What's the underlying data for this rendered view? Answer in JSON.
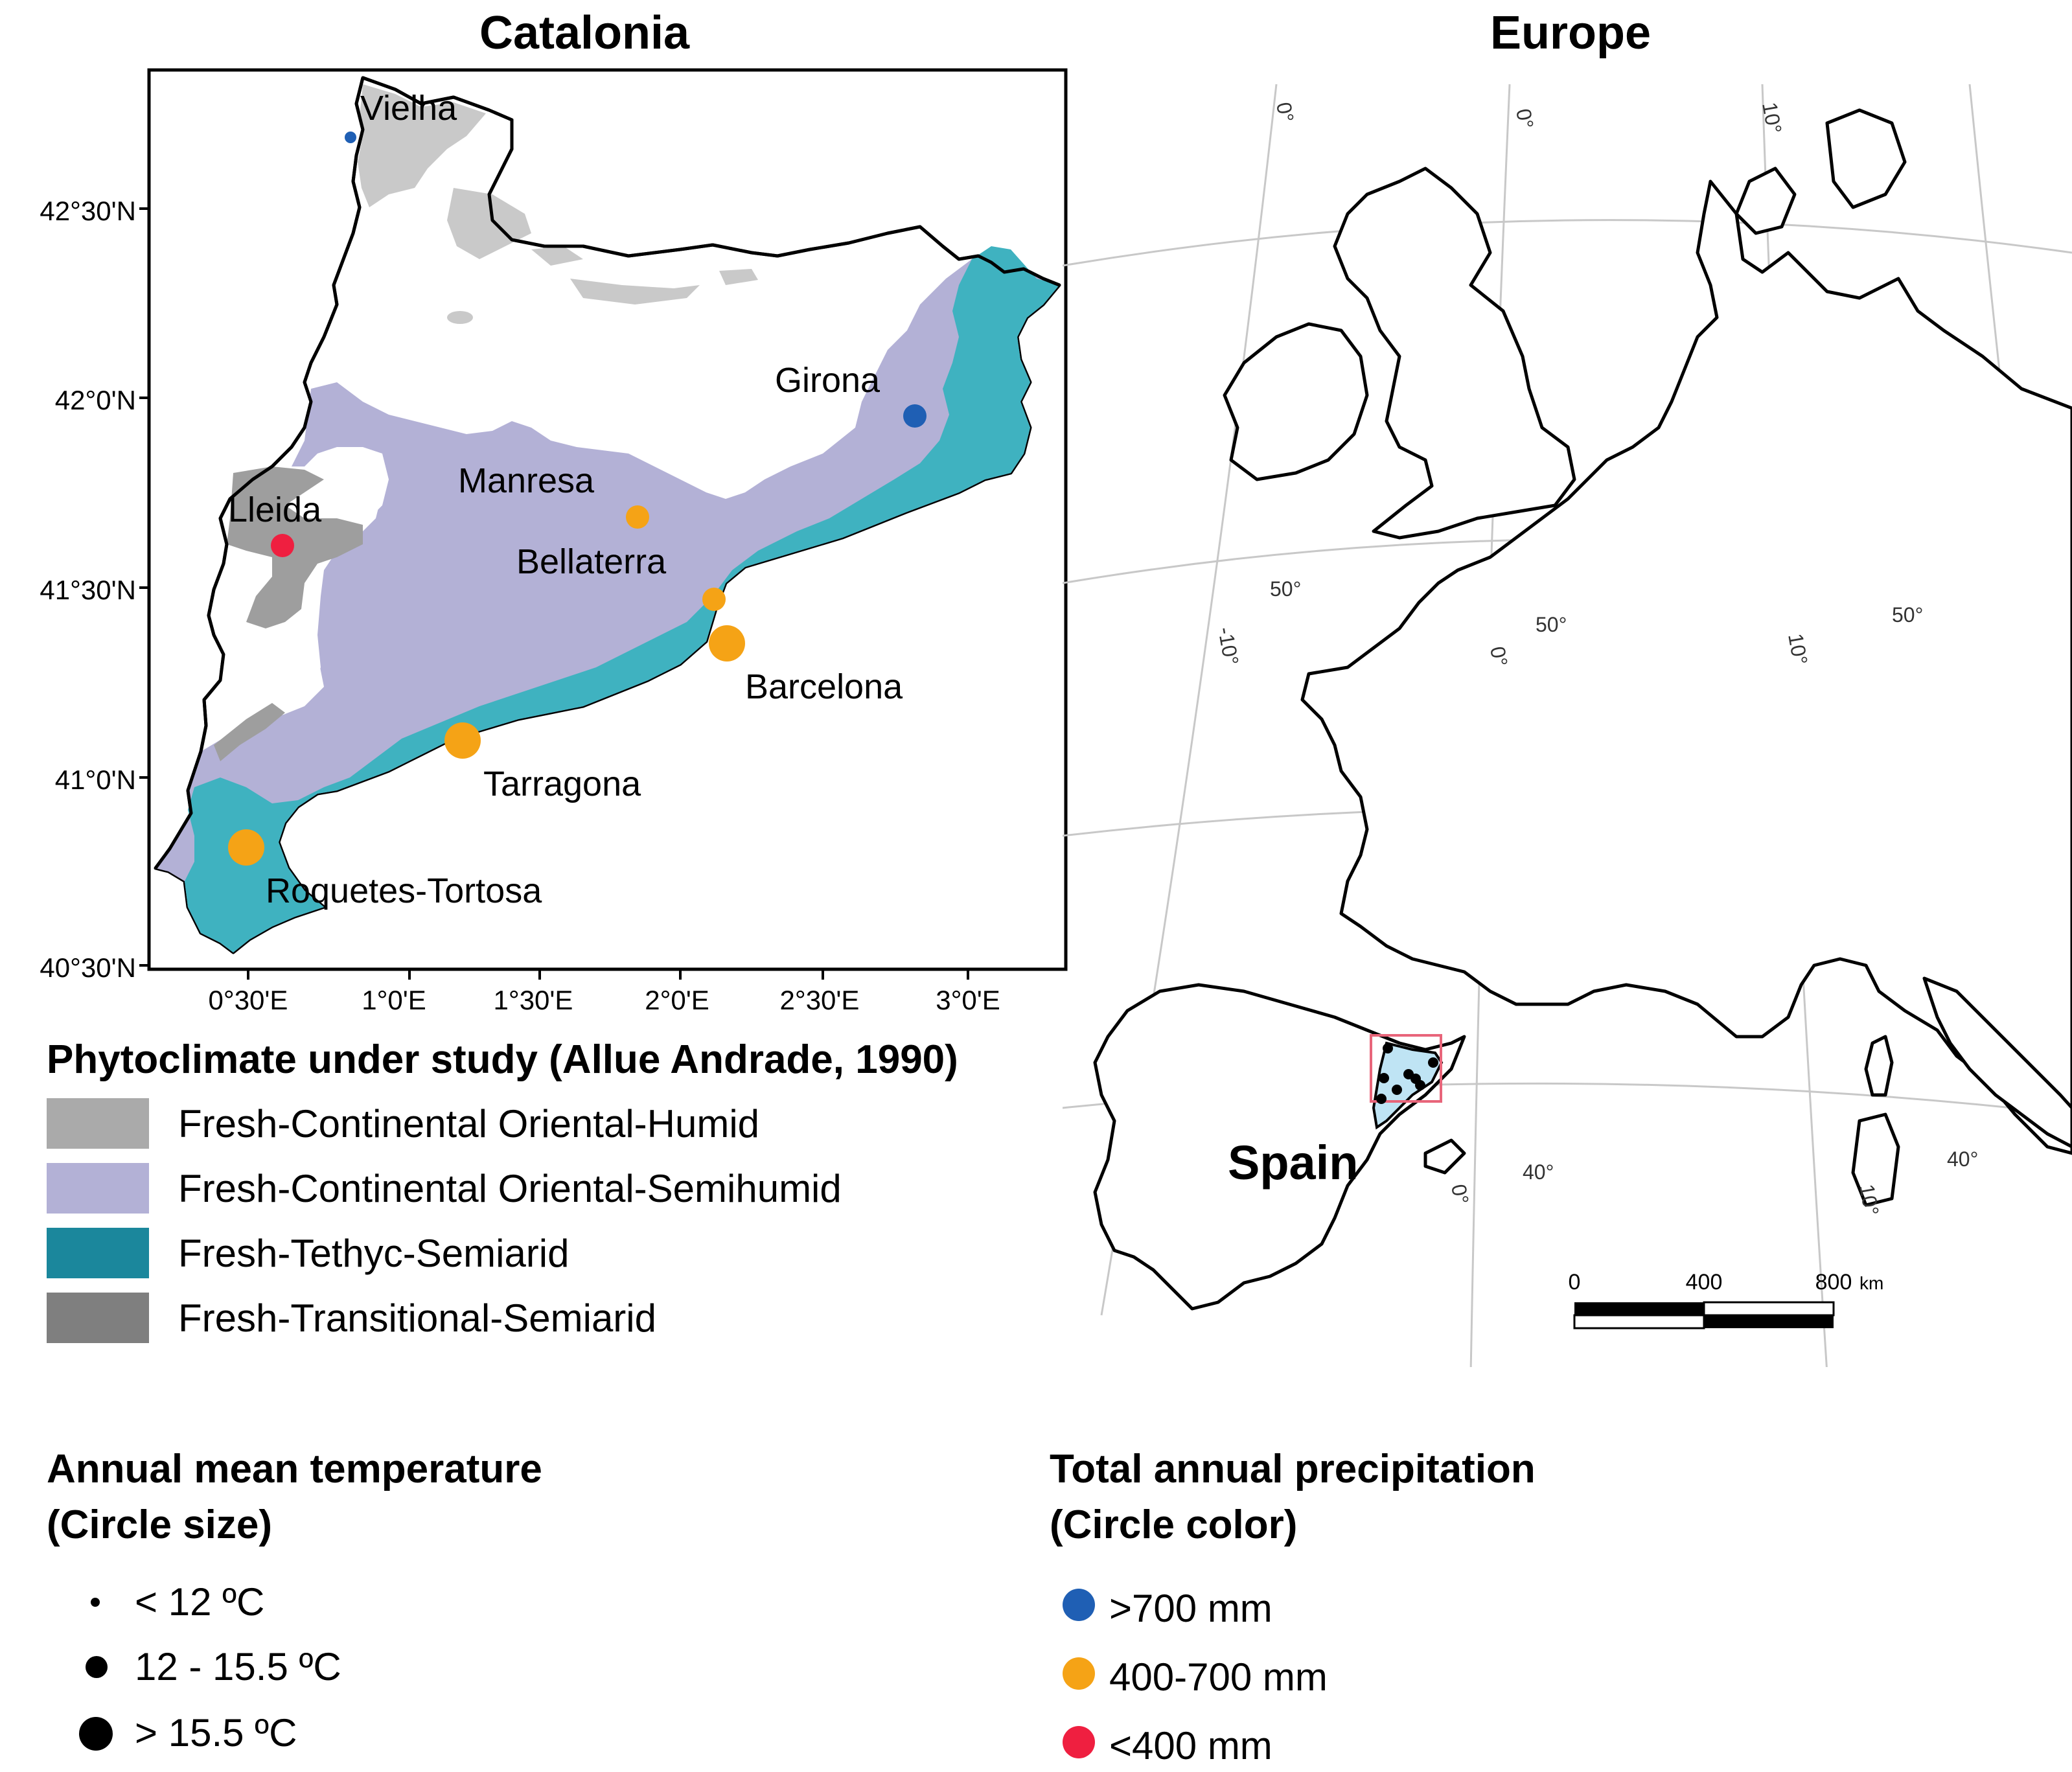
{
  "catalonia": {
    "title": "Catalonia",
    "lat_labels": [
      "42°30'N",
      "42°0'N",
      "41°30'N",
      "41°0'N",
      "40°30'N"
    ],
    "lon_labels": [
      "0°30'E",
      "1°0'E",
      "1°30'E",
      "2°0'E",
      "2°30'E",
      "3°0'E"
    ],
    "cities": [
      {
        "name": "Vielha",
        "precip": ">700 mm",
        "temp": "< 12 ºC"
      },
      {
        "name": "Girona",
        "precip": ">700 mm",
        "temp": "12 - 15.5 ºC"
      },
      {
        "name": "Manresa",
        "precip": "400-700 mm",
        "temp": "12 - 15.5 ºC"
      },
      {
        "name": "Lleida",
        "precip": "<400 mm",
        "temp": "12 - 15.5 ºC"
      },
      {
        "name": "Bellaterra",
        "precip": "400-700 mm",
        "temp": "12 - 15.5 ºC"
      },
      {
        "name": "Barcelona",
        "precip": "400-700 mm",
        "temp": "> 15.5 ºC"
      },
      {
        "name": "Tarragona",
        "precip": "400-700 mm",
        "temp": "> 15.5 ºC"
      },
      {
        "name": "Roquetes-Tortosa",
        "precip": "400-700 mm",
        "temp": "> 15.5 ºC"
      }
    ]
  },
  "europe": {
    "title": "Europe",
    "graticule_labels": [
      "0°",
      "0°",
      "10°",
      "50°",
      "-10°",
      "50°",
      "0°",
      "10°",
      "50°",
      "40°",
      "0°",
      "40°",
      "10°"
    ],
    "country_label": "Spain",
    "scale_bar": {
      "labels": [
        "0",
        "400",
        "800"
      ],
      "unit": "km"
    }
  },
  "legend_phyto": {
    "title": "Phytoclimate under study (Allue Andrade, 1990)",
    "items": [
      {
        "label": "Fresh-Continental Oriental-Humid",
        "color": "#aaaaaa"
      },
      {
        "label": "Fresh-Continental Oriental-Semihumid",
        "color": "#b3b1d6"
      },
      {
        "label": "Fresh-Tethyc-Semiarid",
        "color": "#1b879c"
      },
      {
        "label": "Fresh-Transitional-Semiarid",
        "color": "#7f7f7f"
      }
    ]
  },
  "legend_temp": {
    "title_line1": "Annual mean temperature",
    "title_line2": "(Circle size)",
    "items": [
      "< 12 ºC",
      "12 - 15.5 ºC",
      "> 15.5 ºC"
    ]
  },
  "legend_precip": {
    "title_line1": "Total annual precipitation",
    "title_line2": "(Circle color)",
    "items": [
      {
        "label": ">700 mm",
        "color": "#1f5fb4"
      },
      {
        "label": "400-700 mm",
        "color": "#f5a316"
      },
      {
        "label": "<400 mm",
        "color": "#ef1f40"
      }
    ]
  },
  "colors": {
    "semihumid": "#b3b1d6",
    "semiarid": "#3fb2c0",
    "humid": "#c9c9c9",
    "transitional": "#9e9e9e",
    "catalonia_inset": "#bfe4f4",
    "inset_box": "#e8657a"
  }
}
